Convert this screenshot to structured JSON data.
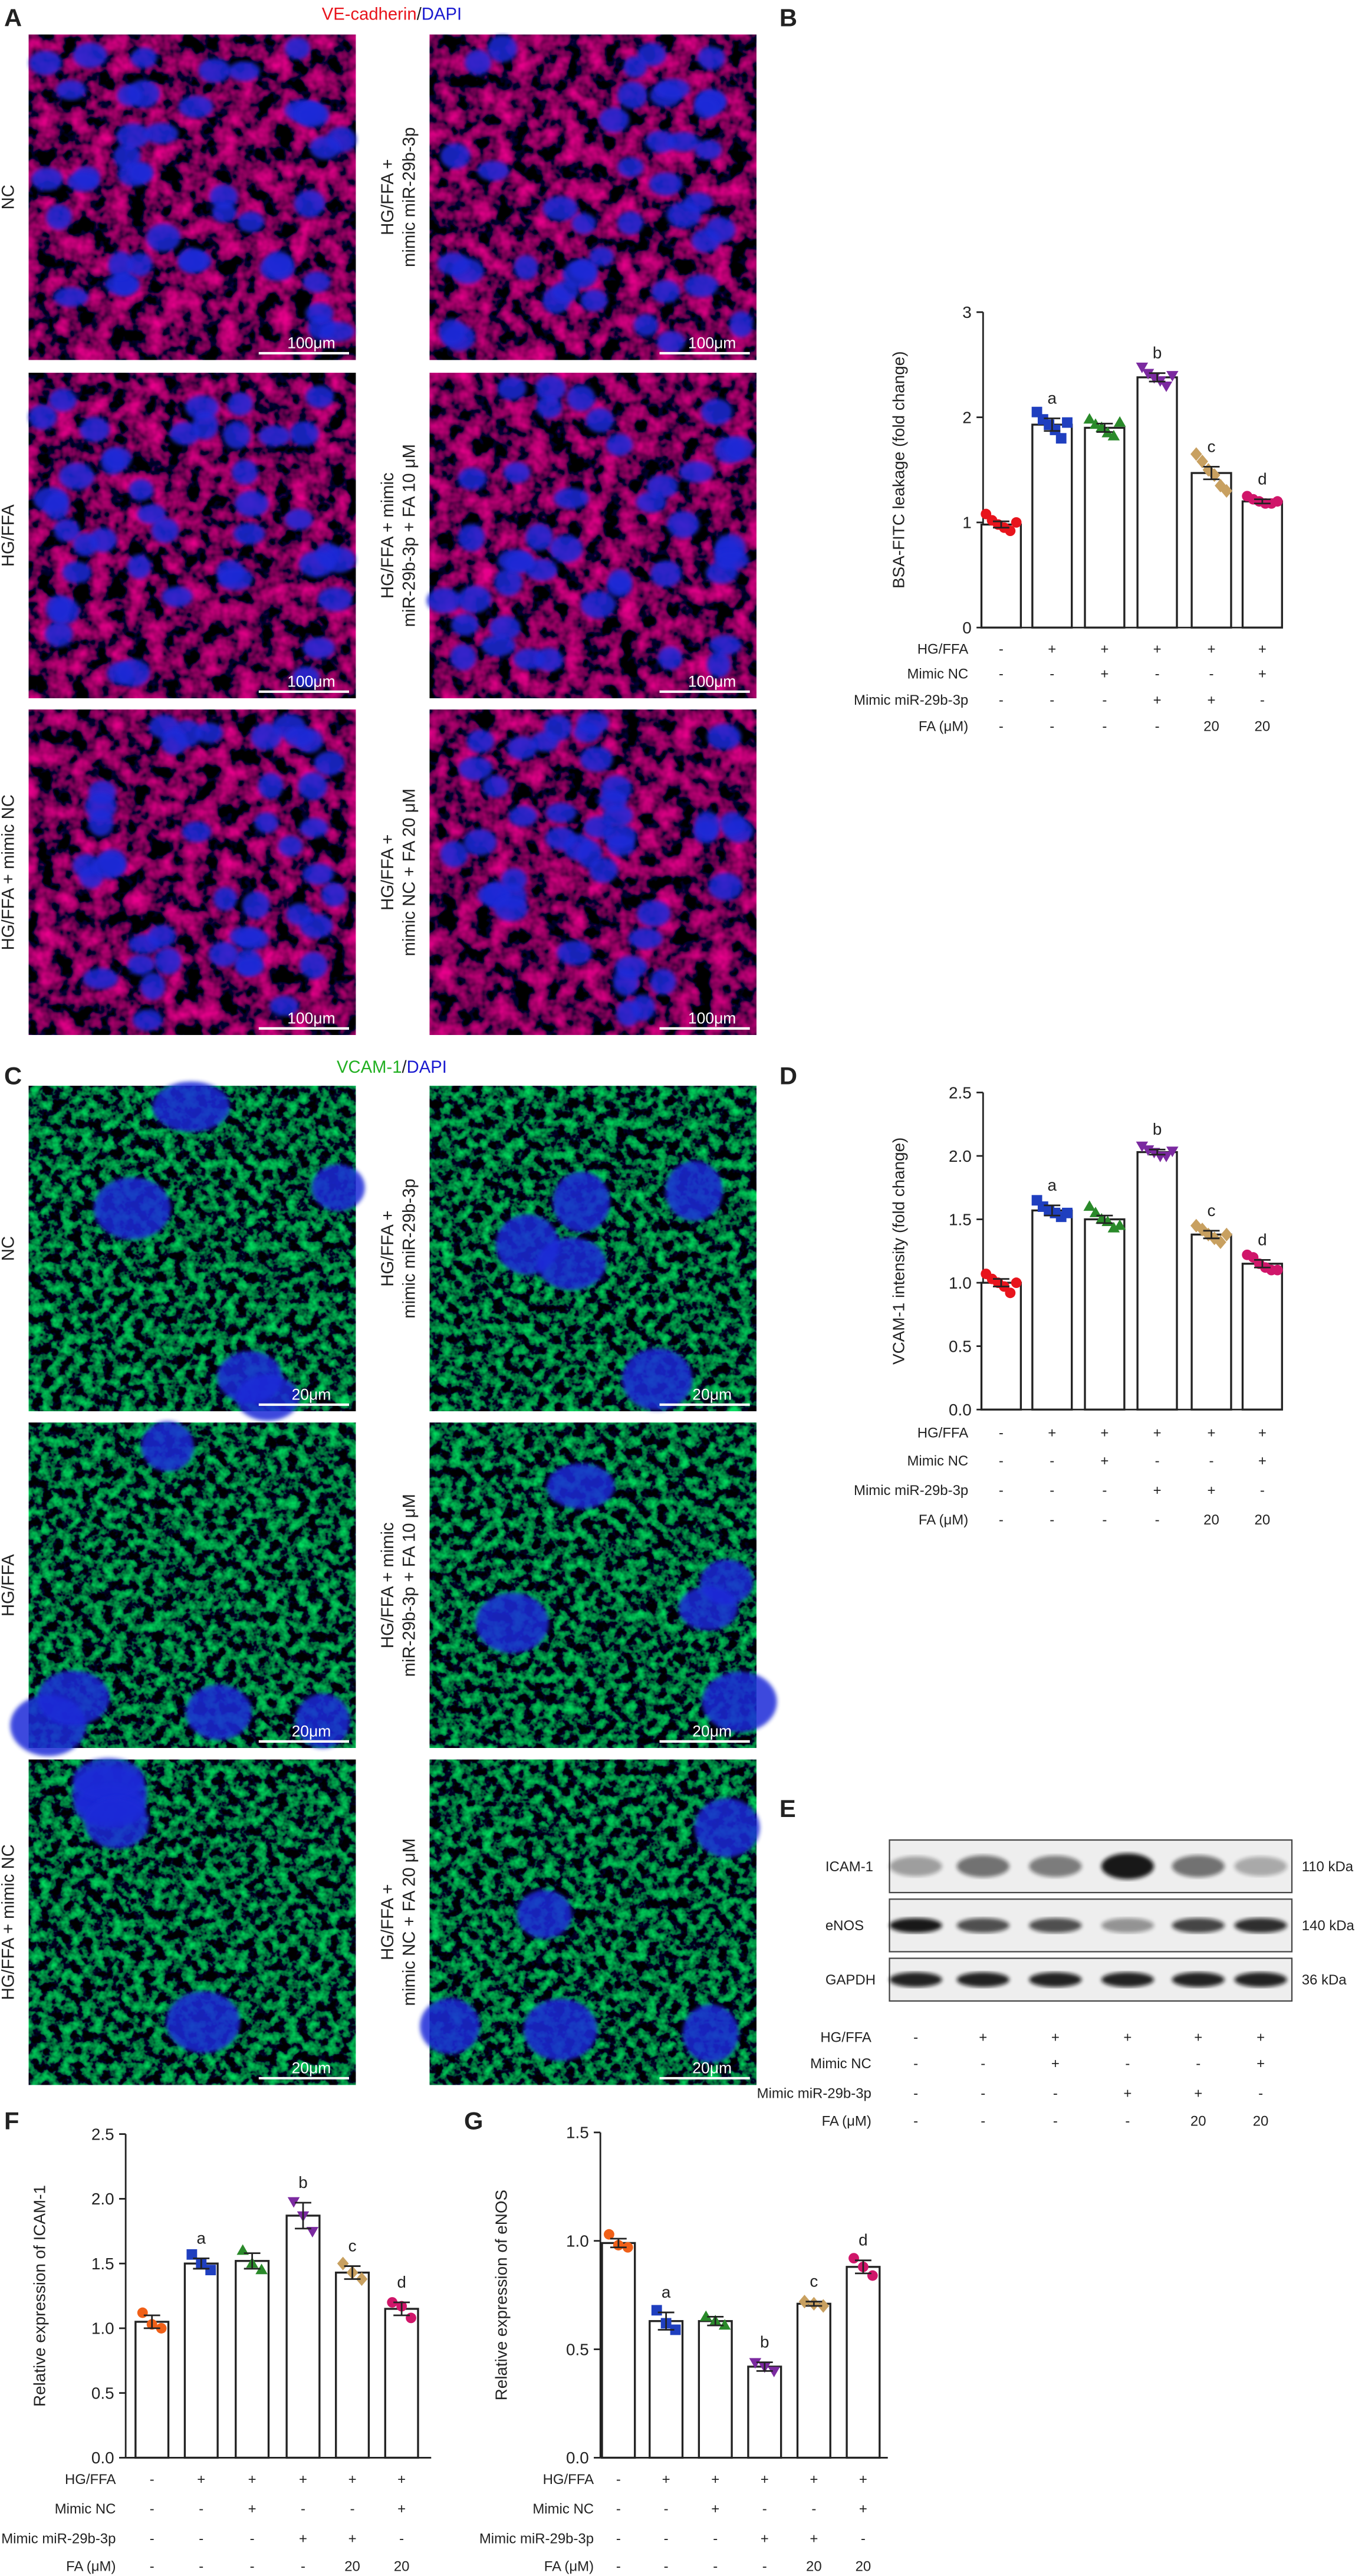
{
  "panels": {
    "A": {
      "letter": "A",
      "title_parts": [
        "VE-cadherin",
        "/",
        "DAPI"
      ],
      "title_colors": [
        "#e8141c",
        "#222222",
        "#1a1ad0"
      ],
      "stain": "red",
      "images": [
        {
          "label": [
            "NC"
          ],
          "scale": "100μm"
        },
        {
          "label": [
            "HG/FFA +",
            "mimic miR-29b-3p"
          ],
          "scale": "100μm"
        },
        {
          "label": [
            "HG/FFA"
          ],
          "scale": "100μm"
        },
        {
          "label": [
            "HG/FFA + mimic",
            "miR-29b-3p + FA 10 μM"
          ],
          "scale": "100μm"
        },
        {
          "label": [
            "HG/FFA + mimic NC"
          ],
          "scale": "100μm"
        },
        {
          "label": [
            "HG/FFA +",
            "mimic NC + FA 20 μM"
          ],
          "scale": "100μm"
        }
      ]
    },
    "C": {
      "letter": "C",
      "title_parts": [
        "VCAM-1",
        "/",
        "DAPI"
      ],
      "title_colors": [
        "#22b022",
        "#222222",
        "#1a1ad0"
      ],
      "stain": "green",
      "images": [
        {
          "label": [
            "NC"
          ],
          "scale": "20μm"
        },
        {
          "label": [
            "HG/FFA +",
            "mimic miR-29b-3p"
          ],
          "scale": "20μm"
        },
        {
          "label": [
            "HG/FFA"
          ],
          "scale": "20μm"
        },
        {
          "label": [
            "HG/FFA + mimic",
            "miR-29b-3p + FA 10 μM"
          ],
          "scale": "20μm"
        },
        {
          "label": [
            "HG/FFA + mimic NC"
          ],
          "scale": "20μm"
        },
        {
          "label": [
            "HG/FFA +",
            "mimic NC + FA 20 μM"
          ],
          "scale": "20μm"
        }
      ]
    },
    "E": {
      "letter": "E",
      "rows": [
        {
          "label": "ICAM-1",
          "size": "110 kDa"
        },
        {
          "label": "eNOS",
          "size": "140 kDa"
        },
        {
          "label": "GAPDH",
          "size": "36 kDa"
        }
      ],
      "conditions": [
        {
          "name": "HG/FFA",
          "values": [
            "-",
            "+",
            "+",
            "+",
            "+",
            "+"
          ]
        },
        {
          "name": "Mimic NC",
          "values": [
            "-",
            "-",
            "+",
            "-",
            "-",
            "+"
          ]
        },
        {
          "name": "Mimic miR-29b-3p",
          "values": [
            "-",
            "-",
            "-",
            "+",
            "+",
            "-"
          ]
        },
        {
          "name": "FA (μM)",
          "values": [
            "-",
            "-",
            "-",
            "-",
            "20",
            "20"
          ]
        }
      ]
    }
  },
  "chart_data": [
    {
      "type": "bar",
      "letter": "B",
      "ylabel": "BSA-FITC leakage (fold change)",
      "ylim": [
        0,
        3
      ],
      "yticks": [
        0,
        1,
        2,
        3
      ],
      "values": [
        0.98,
        1.93,
        1.9,
        2.38,
        1.47,
        1.2
      ],
      "errors": [
        0.03,
        0.06,
        0.04,
        0.04,
        0.06,
        0.02
      ],
      "points": [
        [
          1.08,
          1.02,
          0.98,
          0.95,
          0.92,
          1.0
        ],
        [
          2.05,
          1.98,
          1.93,
          1.88,
          1.8,
          1.95
        ],
        [
          1.98,
          1.93,
          1.9,
          1.85,
          1.82,
          1.95
        ],
        [
          2.48,
          2.42,
          2.38,
          2.35,
          2.3,
          2.4
        ],
        [
          1.65,
          1.58,
          1.5,
          1.45,
          1.35,
          1.3
        ],
        [
          1.25,
          1.22,
          1.2,
          1.18,
          1.18,
          1.2
        ]
      ],
      "annotations": [
        null,
        "a",
        null,
        "b",
        "c",
        "d"
      ],
      "colors": [
        "#e8141c",
        "#1f3fbf",
        "#2a8a2a",
        "#7b2aa0",
        "#c8a060",
        "#d0166a"
      ],
      "markers": [
        "circle",
        "square",
        "triangle",
        "triangle-down",
        "diamond",
        "circle"
      ],
      "conditions": [
        {
          "name": "HG/FFA",
          "values": [
            "-",
            "+",
            "+",
            "+",
            "+",
            "+"
          ]
        },
        {
          "name": "Mimic NC",
          "values": [
            "-",
            "-",
            "+",
            "-",
            "-",
            "+"
          ]
        },
        {
          "name": "Mimic miR-29b-3p",
          "values": [
            "-",
            "-",
            "-",
            "+",
            "+",
            "-"
          ]
        },
        {
          "name": "FA (μM)",
          "values": [
            "-",
            "-",
            "-",
            "-",
            "20",
            "20"
          ]
        }
      ]
    },
    {
      "type": "bar",
      "letter": "D",
      "ylabel": "VCAM-1 intensity (fold change)",
      "ylim": [
        0,
        2.5
      ],
      "yticks": [
        {
          "value": 0,
          "label": "0.0"
        },
        0.5,
        {
          "value": 1,
          "label": "1.0"
        },
        1.5,
        {
          "value": 2,
          "label": "2.0"
        },
        2.5
      ],
      "values": [
        1.0,
        1.57,
        1.5,
        2.03,
        1.38,
        1.15
      ],
      "errors": [
        0.03,
        0.04,
        0.03,
        0.02,
        0.03,
        0.03
      ],
      "points": [
        [
          1.07,
          1.03,
          1.0,
          0.97,
          0.92,
          1.0
        ],
        [
          1.65,
          1.6,
          1.57,
          1.55,
          1.52,
          1.55
        ],
        [
          1.6,
          1.55,
          1.5,
          1.48,
          1.43,
          1.45
        ],
        [
          2.08,
          2.05,
          2.03,
          2.0,
          2.0,
          2.04
        ],
        [
          1.45,
          1.42,
          1.38,
          1.35,
          1.32,
          1.38
        ],
        [
          1.22,
          1.2,
          1.15,
          1.12,
          1.1,
          1.1
        ]
      ],
      "annotations": [
        null,
        "a",
        null,
        "b",
        "c",
        "d"
      ],
      "colors": [
        "#e8141c",
        "#1f3fbf",
        "#2a8a2a",
        "#7b2aa0",
        "#c8a060",
        "#d0166a"
      ],
      "markers": [
        "circle",
        "square",
        "triangle",
        "triangle-down",
        "diamond",
        "circle"
      ],
      "conditions": [
        {
          "name": "HG/FFA",
          "values": [
            "-",
            "+",
            "+",
            "+",
            "+",
            "+"
          ]
        },
        {
          "name": "Mimic NC",
          "values": [
            "-",
            "-",
            "+",
            "-",
            "-",
            "+"
          ]
        },
        {
          "name": "Mimic miR-29b-3p",
          "values": [
            "-",
            "-",
            "-",
            "+",
            "+",
            "-"
          ]
        },
        {
          "name": "FA (μM)",
          "values": [
            "-",
            "-",
            "-",
            "-",
            "20",
            "20"
          ]
        }
      ]
    },
    {
      "type": "bar",
      "letter": "F",
      "ylabel": "Relative expression of ICAM-1",
      "ylim": [
        0,
        2.5
      ],
      "yticks": [
        {
          "value": 0,
          "label": "0.0"
        },
        0.5,
        {
          "value": 1,
          "label": "1.0"
        },
        1.5,
        {
          "value": 2,
          "label": "2.0"
        },
        2.5
      ],
      "values": [
        1.05,
        1.5,
        1.52,
        1.87,
        1.43,
        1.15
      ],
      "errors": [
        0.05,
        0.04,
        0.06,
        0.1,
        0.05,
        0.05
      ],
      "points": [
        [
          1.12,
          1.03,
          1.0
        ],
        [
          1.57,
          1.5,
          1.45
        ],
        [
          1.6,
          1.5,
          1.45
        ],
        [
          1.98,
          1.87,
          1.75
        ],
        [
          1.5,
          1.43,
          1.38
        ],
        [
          1.2,
          1.17,
          1.08
        ]
      ],
      "annotations": [
        null,
        "a",
        null,
        "b",
        "c",
        "d"
      ],
      "colors": [
        "#f06018",
        "#1f3fbf",
        "#2a8a2a",
        "#7b2aa0",
        "#c8a060",
        "#d0166a"
      ],
      "markers": [
        "circle",
        "square",
        "triangle",
        "triangle-down",
        "diamond",
        "circle"
      ],
      "conditions": [
        {
          "name": "HG/FFA",
          "values": [
            "-",
            "+",
            "+",
            "+",
            "+",
            "+"
          ]
        },
        {
          "name": "Mimic NC",
          "values": [
            "-",
            "-",
            "+",
            "-",
            "-",
            "+"
          ]
        },
        {
          "name": "Mimic miR-29b-3p",
          "values": [
            "-",
            "-",
            "-",
            "+",
            "+",
            "-"
          ]
        },
        {
          "name": "FA (μM)",
          "values": [
            "-",
            "-",
            "-",
            "-",
            "20",
            "20"
          ]
        }
      ]
    },
    {
      "type": "bar",
      "letter": "G",
      "ylabel": "Relative expression of eNOS",
      "ylim": [
        0,
        1.5
      ],
      "yticks": [
        {
          "value": 0,
          "label": "0.0"
        },
        0.5,
        {
          "value": 1,
          "label": "1.0"
        },
        1.5
      ],
      "values": [
        0.99,
        0.63,
        0.63,
        0.42,
        0.71,
        0.88
      ],
      "errors": [
        0.02,
        0.04,
        0.02,
        0.02,
        0.01,
        0.03
      ],
      "points": [
        [
          1.03,
          0.98,
          0.97
        ],
        [
          0.68,
          0.62,
          0.59
        ],
        [
          0.65,
          0.63,
          0.61
        ],
        [
          0.44,
          0.42,
          0.4
        ],
        [
          0.72,
          0.71,
          0.7
        ],
        [
          0.92,
          0.88,
          0.84
        ]
      ],
      "annotations": [
        null,
        "a",
        null,
        "b",
        "c",
        "d"
      ],
      "colors": [
        "#f06018",
        "#1f3fbf",
        "#2a8a2a",
        "#7b2aa0",
        "#c8a060",
        "#d0166a"
      ],
      "markers": [
        "circle",
        "square",
        "triangle",
        "triangle-down",
        "diamond",
        "circle"
      ],
      "conditions": [
        {
          "name": "HG/FFA",
          "values": [
            "-",
            "+",
            "+",
            "+",
            "+",
            "+"
          ]
        },
        {
          "name": "Mimic NC",
          "values": [
            "-",
            "-",
            "+",
            "-",
            "-",
            "+"
          ]
        },
        {
          "name": "Mimic miR-29b-3p",
          "values": [
            "-",
            "-",
            "-",
            "+",
            "+",
            "-"
          ]
        },
        {
          "name": "FA (μM)",
          "values": [
            "-",
            "-",
            "-",
            "-",
            "20",
            "20"
          ]
        }
      ]
    }
  ]
}
